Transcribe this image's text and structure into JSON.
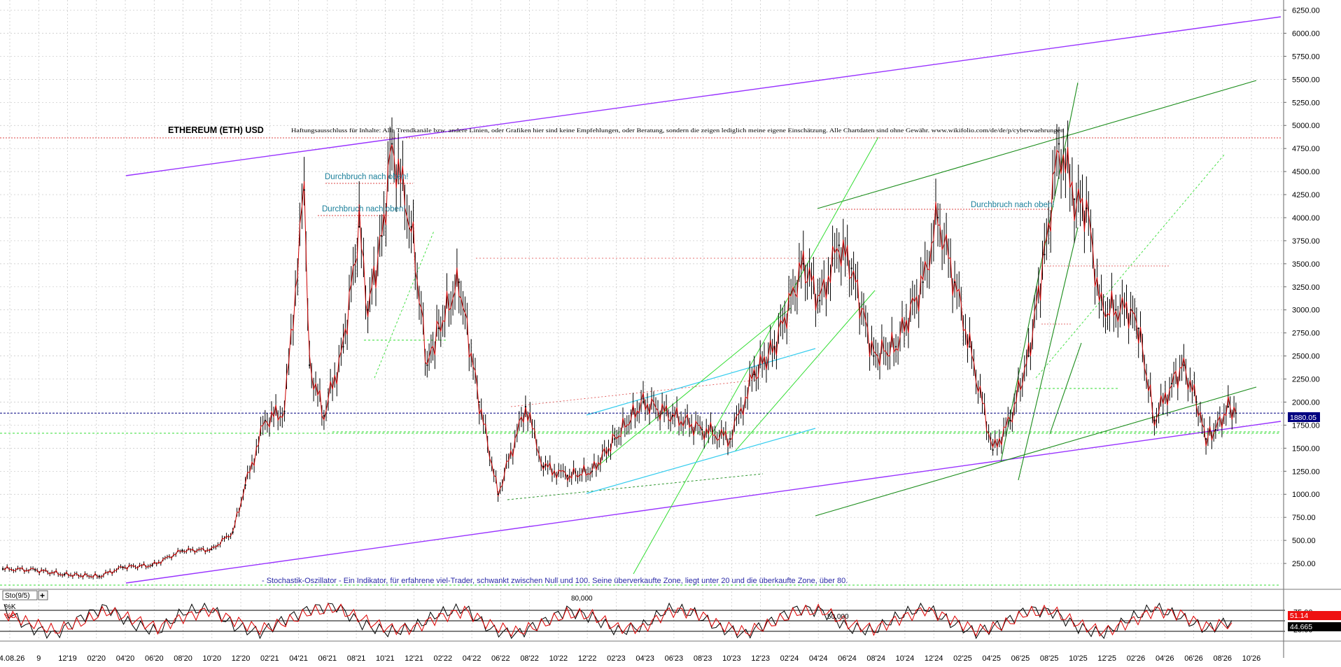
{
  "app": {
    "header": {
      "title": "ETHEREUM (ETH) USD",
      "disclaimer": "Haftungsausschluss für Inhalte: Alle Trendkanäle bzw. andere Linien, oder Grafiken hier sind keine Empfehlungen, oder Beratung, sondern die zeigen lediglich meine eigene Einschätzung. Alle Chartdaten sind ohne Gewähr. www.wikifolio.com/de/de/p/cyberwaehrungen"
    },
    "annotations": [
      {
        "text": "Durchbruch nach oben!"
      },
      {
        "text": "Durchbruch nach oben!"
      },
      {
        "text": "Durchbruch nach oben!"
      }
    ],
    "indicator_note": "- Stochastik-Oszillator - Ein Indikator, für erfahrene viel-Trader, schwankt zwischen Null und 100. Seine überverkaufte Zone, liegt unter 20 und die überkaufte Zone, über 80.",
    "indicator_panel": {
      "name": "Sto(9/5)",
      "add_button": "+",
      "k_label": "%K",
      "d_label": "%D",
      "level_labels": [
        "80,000",
        "50,000"
      ],
      "value_k": "51.14",
      "value_d": "44.665"
    },
    "price_badge": "1880.05",
    "colors": {
      "price_candles": "#000000",
      "close_line": "#cc0000",
      "channel_main": "#9933ff",
      "trend_dark_green": "#1a8c1a",
      "trend_light_green": "#33dd33",
      "trend_cyan": "#33ccee",
      "resistance_red": "#dd4444",
      "current_price": "#000080",
      "annotation_text": "#1a7f9a",
      "k_line": "#000000",
      "d_line": "#dd0000"
    }
  },
  "chart_data": [
    {
      "type": "line",
      "title": "ETHEREUM (ETH) USD",
      "y_axis": {
        "ticks": [
          "6250.00",
          "6000.00",
          "5750.00",
          "5500.00",
          "5250.00",
          "5000.00",
          "4750.00",
          "4500.00",
          "4250.00",
          "4000.00",
          "3750.00",
          "3500.00",
          "3250.00",
          "3000.00",
          "2750.00",
          "2500.00",
          "2250.00",
          "2000.00",
          "1750.00",
          "1500.00",
          "1250.00",
          "1000.00",
          "750.00",
          "500.00",
          "250.00"
        ],
        "range": [
          0,
          6330
        ]
      },
      "x_axis": {
        "ticks": [
          "14.08.26",
          "9",
          "12'19",
          "02'20",
          "04'20",
          "06'20",
          "08'20",
          "10'20",
          "12'20",
          "02'21",
          "04'21",
          "06'21",
          "08'21",
          "10'21",
          "12'21",
          "02'22",
          "04'22",
          "06'22",
          "08'22",
          "10'22",
          "12'22",
          "02'23",
          "04'23",
          "06'23",
          "08'23",
          "10'23",
          "12'23",
          "02'24",
          "04'24",
          "06'24",
          "08'24",
          "10'24",
          "12'24",
          "02'25",
          "04'25",
          "06'25",
          "08'25",
          "10'25",
          "12'25",
          "02'26",
          "04'26",
          "06'26",
          "08'26",
          "10'26"
        ],
        "range": [
          "2019-08-26",
          "2026-11-30"
        ]
      },
      "grid": true,
      "current_price": 1880.05,
      "x": [
        "2019-08-26",
        "2019-11-01",
        "2020-01-01",
        "2020-03-13",
        "2020-05-01",
        "2020-07-01",
        "2020-09-01",
        "2020-11-01",
        "2020-12-15",
        "2021-01-10",
        "2021-02-20",
        "2021-04-01",
        "2021-05-12",
        "2021-05-23",
        "2021-06-22",
        "2021-08-01",
        "2021-09-03",
        "2021-09-21",
        "2021-10-20",
        "2021-11-10",
        "2021-12-20",
        "2022-01-22",
        "2022-02-15",
        "2022-03-29",
        "2022-05-10",
        "2022-06-18",
        "2022-08-14",
        "2022-09-20",
        "2022-11-09",
        "2022-12-30",
        "2023-02-15",
        "2023-04-15",
        "2023-06-15",
        "2023-08-15",
        "2023-10-12",
        "2023-12-01",
        "2024-01-12",
        "2024-03-12",
        "2024-04-15",
        "2024-05-25",
        "2024-06-20",
        "2024-08-05",
        "2024-09-20",
        "2024-11-15",
        "2024-12-16",
        "2025-01-20",
        "2025-02-20",
        "2025-04-09",
        "2025-05-15",
        "2025-06-22",
        "2025-07-25",
        "2025-08-24",
        "2025-09-25",
        "2025-10-20",
        "2025-11-20",
        "2025-12-20",
        "2026-01-20",
        "2026-02-05",
        "2026-03-10",
        "2026-04-15",
        "2026-05-10",
        "2026-06-05",
        "2026-06-25",
        "2026-07-15",
        "2026-08-10",
        "2026-08-26"
      ],
      "series": [
        {
          "values": [
            190,
            180,
            130,
            110,
            210,
            230,
            390,
            400,
            590,
            1100,
            1800,
            1900,
            4300,
            2400,
            1850,
            2600,
            3900,
            3000,
            3800,
            4800,
            3900,
            2400,
            2800,
            3300,
            2000,
            1000,
            1950,
            1300,
            1200,
            1250,
            1600,
            2000,
            1850,
            1700,
            1600,
            2300,
            2600,
            3500,
            3100,
            3700,
            3450,
            2500,
            2600,
            3300,
            4000,
            3300,
            2600,
            1480,
            1800,
            2500,
            3600,
            4800,
            4200,
            4100,
            3000,
            3000,
            3000,
            2800,
            1800,
            2200,
            2400,
            2000,
            1600,
            1700,
            1950,
            1880
          ]
        }
      ]
    },
    {
      "type": "line",
      "title": "Sto(9/5)",
      "y_axis": {
        "ticks": [
          "75.00",
          "25.00"
        ],
        "range": [
          0,
          100
        ],
        "levels": [
          80,
          50,
          20
        ]
      },
      "series": [
        {
          "name": "%K",
          "values": [
            82,
            30,
            12,
            60,
            90,
            40,
            20,
            75,
            88,
            35,
            15,
            55,
            85,
            92,
            40,
            18,
            30,
            70,
            85,
            25,
            10,
            45,
            80,
            60,
            20,
            35,
            88,
            70,
            28,
            12,
            50,
            85,
            78,
            30,
            22,
            65,
            90,
            45,
            15,
            40,
            82,
            75,
            30,
            12,
            55,
            88,
            60,
            25,
            51.14
          ]
        },
        {
          "name": "%D",
          "values": [
            70,
            45,
            22,
            45,
            78,
            55,
            30,
            60,
            80,
            50,
            25,
            45,
            75,
            85,
            55,
            28,
            28,
            60,
            78,
            38,
            18,
            38,
            70,
            65,
            30,
            30,
            78,
            75,
            38,
            18,
            42,
            75,
            80,
            42,
            26,
            55,
            82,
            55,
            22,
            35,
            72,
            78,
            40,
            18,
            45,
            80,
            68,
            32,
            44.665
          ]
        }
      ]
    }
  ]
}
